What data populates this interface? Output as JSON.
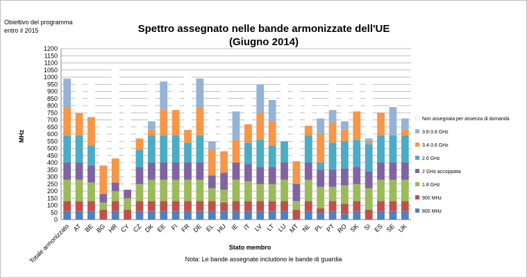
{
  "chart_data": {
    "type": "bar",
    "stacked": true,
    "title": "Spettro assegnato nelle bande armonizzate dell'UE",
    "subtitle": "(Giugno 2014)",
    "annotation": "Obiettivo del programma entro il 2015",
    "xlabel": "Stato membro",
    "ylabel": "MHz",
    "ylim": [
      0,
      1200
    ],
    "ytick_step": 50,
    "grid": true,
    "legend_position": "right",
    "note": "Nota: Le bande assegnate includono le bande di guardia",
    "categories": [
      "Totale armonizzato",
      "AT",
      "BE",
      "BG",
      "HR",
      "CY",
      "CZ",
      "DK",
      "EE",
      "FI",
      "FR",
      "DE",
      "EL",
      "HU",
      "IE",
      "IT",
      "LV",
      "LT",
      "LU",
      "MT",
      "NL",
      "PL",
      "PT",
      "RO",
      "SK",
      "SI",
      "ES",
      "SE",
      "UK"
    ],
    "series": [
      {
        "name": "800 MHz",
        "color": "#4f81bd",
        "values": [
          60,
          60,
          60,
          0,
          60,
          0,
          60,
          60,
          60,
          60,
          60,
          60,
          60,
          60,
          60,
          60,
          60,
          60,
          60,
          0,
          60,
          50,
          60,
          40,
          60,
          0,
          60,
          60,
          60
        ]
      },
      {
        "name": "900 MHz",
        "color": "#c0504d",
        "values": [
          70,
          70,
          70,
          70,
          70,
          70,
          70,
          70,
          70,
          70,
          70,
          70,
          70,
          60,
          70,
          70,
          70,
          70,
          70,
          70,
          70,
          30,
          70,
          70,
          70,
          70,
          70,
          70,
          70
        ]
      },
      {
        "name": "1.8 GHz",
        "color": "#9bbb59",
        "values": [
          150,
          150,
          130,
          50,
          70,
          80,
          120,
          150,
          150,
          150,
          150,
          150,
          90,
          90,
          150,
          140,
          120,
          120,
          150,
          60,
          150,
          150,
          100,
          130,
          120,
          150,
          150,
          150,
          150
        ]
      },
      {
        "name": "2 GHz accoppiata",
        "color": "#8064a2",
        "values": [
          120,
          120,
          120,
          60,
          60,
          60,
          120,
          120,
          120,
          120,
          120,
          120,
          90,
          120,
          120,
          120,
          120,
          120,
          120,
          120,
          120,
          120,
          120,
          120,
          120,
          120,
          120,
          120,
          120
        ]
      },
      {
        "name": "2.6 GHz",
        "color": "#4bacc6",
        "values": [
          190,
          190,
          140,
          0,
          0,
          0,
          120,
          190,
          190,
          190,
          140,
          190,
          0,
          0,
          0,
          150,
          190,
          150,
          150,
          0,
          190,
          50,
          190,
          190,
          190,
          190,
          190,
          190,
          190
        ]
      },
      {
        "name": "3.4-3.6 GHz",
        "color": "#f79646",
        "values": [
          200,
          160,
          200,
          200,
          170,
          0,
          80,
          40,
          180,
          180,
          90,
          200,
          180,
          150,
          160,
          130,
          190,
          170,
          0,
          160,
          70,
          200,
          140,
          80,
          200,
          20,
          160,
          0,
          40
        ]
      },
      {
        "name": "3.6-3.8 GHz",
        "color": "#95b3d7",
        "values": [
          200,
          0,
          0,
          0,
          0,
          0,
          0,
          60,
          200,
          0,
          0,
          200,
          60,
          0,
          200,
          0,
          200,
          150,
          0,
          0,
          0,
          110,
          90,
          60,
          0,
          20,
          0,
          200,
          80
        ]
      },
      {
        "name": "Non assegnata per assenza di domanda",
        "color": "#ffffff",
        "values": [
          0,
          240,
          250,
          300,
          630,
          610,
          110,
          300,
          10,
          210,
          380,
          0,
          230,
          450,
          10,
          210,
          20,
          60,
          430,
          500,
          210,
          90,
          200,
          210,
          200,
          410,
          0,
          40,
          0
        ]
      }
    ]
  }
}
